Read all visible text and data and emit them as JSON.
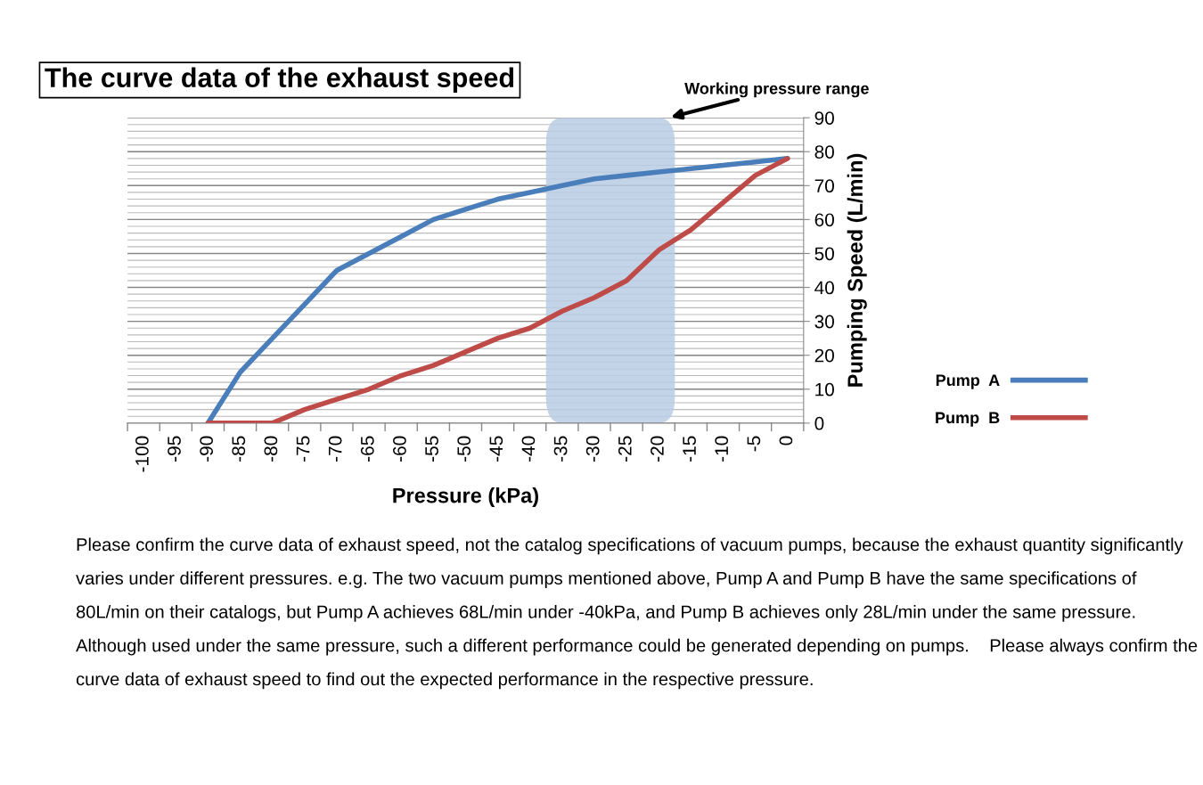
{
  "chart_data": {
    "type": "line",
    "title": "The curve data of the exhaust speed",
    "xlabel": "Pressure (kPa)",
    "ylabel": "Pumping Speed (L/min)",
    "x": [
      -90,
      -85,
      -80,
      -75,
      -70,
      -65,
      -60,
      -55,
      -50,
      -45,
      -40,
      -35,
      -30,
      -25,
      -20,
      -15,
      -10,
      -5,
      0
    ],
    "series": [
      {
        "name": "Pump  A",
        "color": "#4a7ebb",
        "values": [
          0,
          15,
          25,
          35,
          45,
          50,
          55,
          60,
          63,
          66,
          68,
          70,
          72,
          73,
          74,
          75,
          76,
          77,
          78
        ]
      },
      {
        "name": "Pump  B",
        "color": "#be4b48",
        "values": [
          0,
          0,
          0,
          4,
          7,
          10,
          14,
          17,
          21,
          25,
          28,
          33,
          37,
          42,
          51,
          57,
          65,
          73,
          78
        ]
      }
    ],
    "xlim": [
      -102.5,
      2.5
    ],
    "xticks": [
      -100,
      -95,
      -90,
      -85,
      -80,
      -75,
      -70,
      -65,
      -60,
      -55,
      -50,
      -45,
      -40,
      -35,
      -30,
      -25,
      -20,
      -15,
      -10,
      -5,
      0
    ],
    "ylim": [
      0,
      90
    ],
    "yticks": [
      0,
      10,
      20,
      30,
      40,
      50,
      60,
      70,
      80,
      90
    ],
    "bands": [
      {
        "axis": "x",
        "from": -37.5,
        "to": -17.5,
        "label": "Working pressure range",
        "color": "#b9cce4"
      }
    ],
    "annotations": [
      "Please confirm the curve data of exhaust speed, not the catalog specifications of vacuum pumps, because the exhaust quantity significantly varies under different pressures. e.g. The two vacuum pumps mentioned above, Pump A and Pump B have the same specifications of 80L/min on their catalogs, but Pump A achieves 68L/min under -40kPa, and Pump B achieves only 28L/min under the same pressure.    Although used under the same pressure, such a different performance could be generated depending on pumps.    Please always confirm the curve data of exhaust speed to find out the expected performance in the respective pressure."
    ],
    "grid": "y",
    "legend": "right",
    "marker": "none",
    "line_style": "solid"
  }
}
